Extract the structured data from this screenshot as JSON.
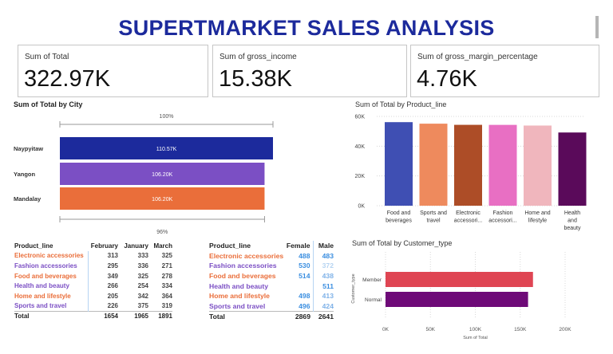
{
  "page": {
    "title": "SUPERTMARKET SALES ANALYSIS"
  },
  "kpis": [
    {
      "label": "Sum of Total",
      "value": "322.97K"
    },
    {
      "label": "Sum of gross_income",
      "value": "15.38K"
    },
    {
      "label": "Sum of gross_margin_percentage",
      "value": "4.76K"
    }
  ],
  "colors": {
    "title": "#1c2a9c",
    "city": [
      "#1c2a9c",
      "#7b4fc4",
      "#ea6e3a"
    ],
    "product_line": [
      "#3f4fb3",
      "#ee8a5d",
      "#ad4d27",
      "#e86fc3",
      "#f0b6bd",
      "#5a0a5a"
    ],
    "customer_type": [
      "#df4553",
      "#6e0a78"
    ]
  },
  "chart_data": [
    {
      "type": "bar",
      "orientation": "horizontal",
      "title": "Sum of Total by City",
      "categories": [
        "Naypyitaw",
        "Yangon",
        "Mandalay"
      ],
      "values": [
        110.57,
        106.2,
        106.2
      ],
      "value_labels": [
        "110.57K",
        "106.20K",
        "106.20K"
      ],
      "top_label": "100%",
      "bottom_label": "96%"
    },
    {
      "type": "bar",
      "title": "Sum of Total by Product_line",
      "categories": [
        "Food and beverages",
        "Sports and travel",
        "Electronic accessori...",
        "Fashion accessori...",
        "Home and lifestyle",
        "Health and beauty"
      ],
      "category_lines": [
        [
          "Food and",
          "beverages"
        ],
        [
          "Sports and",
          "travel"
        ],
        [
          "Electronic",
          "accessori..."
        ],
        [
          "Fashion",
          "accessori..."
        ],
        [
          "Home and",
          "lifestyle"
        ],
        [
          "Health",
          "and",
          "beauty"
        ]
      ],
      "values": [
        56144,
        55123,
        54338,
        54306,
        53862,
        49194
      ],
      "ylim": [
        0,
        60000
      ],
      "yticks": [
        0,
        20000,
        40000,
        60000
      ],
      "ytick_labels": [
        "0K",
        "20K",
        "40K",
        "60K"
      ],
      "grid": true
    },
    {
      "type": "bar",
      "orientation": "horizontal",
      "title": "Sum of Total by Customer_type",
      "categories": [
        "Member",
        "Normal"
      ],
      "values": [
        164223,
        158743
      ],
      "xlabel": "Sum of Total",
      "ylabel": "Customer_type",
      "xlim": [
        0,
        200000
      ],
      "xticks": [
        0,
        50000,
        100000,
        150000,
        200000
      ],
      "xtick_labels": [
        "0K",
        "50K",
        "100K",
        "150K",
        "200K"
      ],
      "grid": true
    },
    {
      "type": "table",
      "columns": [
        "Product_line",
        "February",
        "January",
        "March"
      ],
      "rows": [
        {
          "label": "Electronic accessories",
          "values": [
            "313",
            "333",
            "325"
          ]
        },
        {
          "label": "Fashion accessories",
          "values": [
            "295",
            "336",
            "271"
          ]
        },
        {
          "label": "Food and beverages",
          "values": [
            "349",
            "325",
            "278"
          ]
        },
        {
          "label": "Health and beauty",
          "values": [
            "266",
            "254",
            "334"
          ]
        },
        {
          "label": "Home and lifestyle",
          "values": [
            "205",
            "342",
            "364"
          ]
        },
        {
          "label": "Sports and travel",
          "values": [
            "226",
            "375",
            "319"
          ]
        }
      ],
      "total": {
        "label": "Total",
        "values": [
          "1654",
          "1965",
          "1891"
        ]
      },
      "row_colors": [
        "#ea6e3a",
        "#7b4fc4",
        "#ea6e3a",
        "#7b4fc4",
        "#ea6e3a",
        "#7b4fc4"
      ]
    },
    {
      "type": "table",
      "columns": [
        "Product_line",
        "Female",
        "Male"
      ],
      "rows": [
        {
          "label": "Electronic accessories",
          "values": [
            "488",
            "483"
          ]
        },
        {
          "label": "Fashion accessories",
          "values": [
            "530",
            "372"
          ]
        },
        {
          "label": "Food and beverages",
          "values": [
            "514",
            "438"
          ]
        },
        {
          "label": "Health and beauty",
          "values": [
            "",
            "511"
          ]
        },
        {
          "label": "Home and lifestyle",
          "values": [
            "498",
            "413"
          ]
        },
        {
          "label": "Sports and travel",
          "values": [
            "496",
            "424"
          ]
        }
      ],
      "total": {
        "label": "Total",
        "values": [
          "2869",
          "2641"
        ]
      },
      "row_colors": [
        "#ea6e3a",
        "#7b4fc4",
        "#ea6e3a",
        "#7b4fc4",
        "#ea6e3a",
        "#7b4fc4"
      ],
      "cell_colors": [
        [
          "#3a8ee0",
          "#3a8ee0"
        ],
        [
          "#3a8ee0",
          "#b6d4f2"
        ],
        [
          "#3a8ee0",
          "#7fb2e8"
        ],
        [
          "",
          "#3a8ee0"
        ],
        [
          "#3a8ee0",
          "#7fb2e8"
        ],
        [
          "#3a8ee0",
          "#7fb2e8"
        ]
      ]
    }
  ]
}
